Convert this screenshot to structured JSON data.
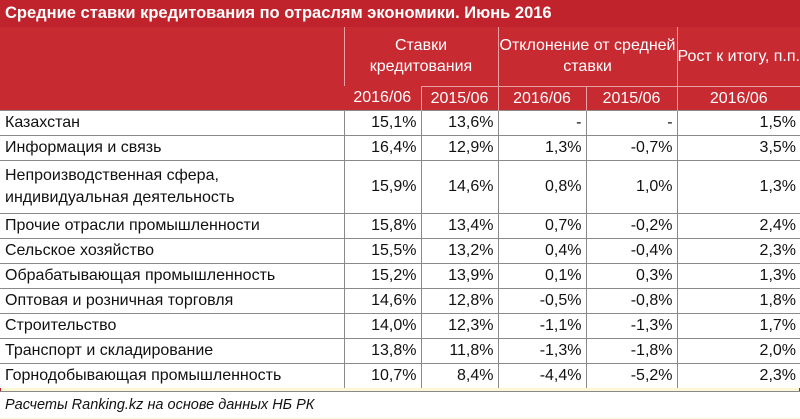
{
  "title": "Средние ставки кредитования по отраслям экономики. Июнь 2016",
  "headers": {
    "group1": "Ставки кредитования",
    "group2": "Отклонение от средней ставки",
    "group3": "Рост к итогу, п.п.",
    "sub": [
      "2016/06",
      "2015/06",
      "2016/06",
      "2015/06",
      "2016/06"
    ]
  },
  "rows": [
    {
      "name": "Казахстан",
      "v": [
        "15,1%",
        "13,6%",
        "-",
        "-",
        "1,5%"
      ]
    },
    {
      "name": "Информация и связь",
      "v": [
        "16,4%",
        "12,9%",
        "1,3%",
        "-0,7%",
        "3,5%"
      ]
    },
    {
      "name": "Непроизводственная сфера, индивидуальная деятельность",
      "v": [
        "15,9%",
        "14,6%",
        "0,8%",
        "1,0%",
        "1,3%"
      ]
    },
    {
      "name": "Прочие отрасли промышленности",
      "v": [
        "15,8%",
        "13,4%",
        "0,7%",
        "-0,2%",
        "2,4%"
      ]
    },
    {
      "name": "Сельское хозяйство",
      "v": [
        "15,5%",
        "13,2%",
        "0,4%",
        "-0,4%",
        "2,3%"
      ]
    },
    {
      "name": "Обрабатывающая промышленность",
      "v": [
        "15,2%",
        "13,9%",
        "0,1%",
        "0,3%",
        "1,3%"
      ]
    },
    {
      "name": "Оптовая и розничная торговля",
      "v": [
        "14,6%",
        "12,8%",
        "-0,5%",
        "-0,8%",
        "1,8%"
      ]
    },
    {
      "name": "Строительство",
      "v": [
        "14,0%",
        "12,3%",
        "-1,1%",
        "-1,3%",
        "1,7%"
      ]
    },
    {
      "name": "Транспорт и складирование",
      "v": [
        "13,8%",
        "11,8%",
        "-1,3%",
        "-1,8%",
        "2,0%"
      ]
    },
    {
      "name": "Горнодобывающая промышленность",
      "v": [
        "10,7%",
        "8,4%",
        "-4,4%",
        "-5,2%",
        "2,3%"
      ]
    }
  ],
  "footer": "Расчеты Ranking.kz на основе данных НБ РК"
}
